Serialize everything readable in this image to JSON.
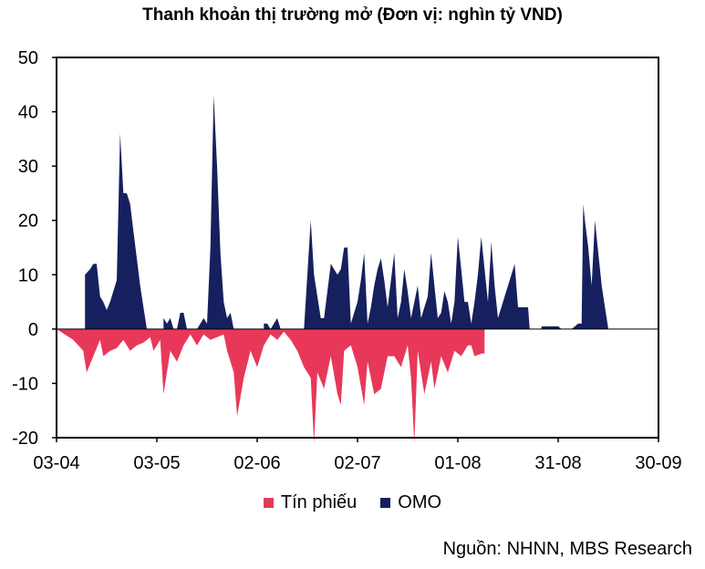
{
  "chart_data": {
    "type": "area",
    "title": "Thanh khoản thị trường mở (Đơn vị: nghìn tỷ VND)",
    "xlabel": "",
    "ylabel": "",
    "ylim": [
      -20,
      50
    ],
    "yticks": [
      -20,
      -10,
      0,
      10,
      20,
      30,
      40,
      50
    ],
    "xticks": [
      "03-04",
      "03-05",
      "02-06",
      "02-07",
      "01-08",
      "31-08",
      "30-09"
    ],
    "xlim_days": [
      0,
      180
    ],
    "grid": false,
    "legend_position": "bottom",
    "series": [
      {
        "name": "Tín phiếu",
        "color": "#e8385a",
        "points": [
          [
            0,
            0
          ],
          [
            5,
            -2
          ],
          [
            8,
            -4
          ],
          [
            9,
            -8
          ],
          [
            11,
            -5
          ],
          [
            13,
            -2
          ],
          [
            14,
            -5
          ],
          [
            16,
            -4
          ],
          [
            18,
            -3.5
          ],
          [
            20,
            -2
          ],
          [
            22,
            -4
          ],
          [
            24,
            -3
          ],
          [
            26,
            -2.5
          ],
          [
            28,
            -1.5
          ],
          [
            29,
            -4
          ],
          [
            31,
            -2
          ],
          [
            32,
            -12
          ],
          [
            34,
            -4
          ],
          [
            36,
            -6
          ],
          [
            38,
            -3
          ],
          [
            40,
            -1
          ],
          [
            42,
            -3
          ],
          [
            44,
            -1
          ],
          [
            46,
            -2
          ],
          [
            48,
            -1.5
          ],
          [
            50,
            -1
          ],
          [
            51,
            -4
          ],
          [
            53,
            -8
          ],
          [
            54,
            -16
          ],
          [
            56,
            -9
          ],
          [
            58,
            -4
          ],
          [
            60,
            -7
          ],
          [
            62,
            -3
          ],
          [
            64,
            -1
          ],
          [
            66,
            -2
          ],
          [
            68,
            -0.5
          ],
          [
            70,
            -2
          ],
          [
            72,
            -4
          ],
          [
            74,
            -7
          ],
          [
            76,
            -9
          ],
          [
            77,
            -21
          ],
          [
            78,
            -8
          ],
          [
            80,
            -11
          ],
          [
            82,
            -5
          ],
          [
            84,
            -12
          ],
          [
            85,
            -14
          ],
          [
            86,
            -4
          ],
          [
            88,
            -3
          ],
          [
            90,
            -7
          ],
          [
            92,
            -14
          ],
          [
            93,
            -6
          ],
          [
            95,
            -12
          ],
          [
            97,
            -11
          ],
          [
            99,
            -5
          ],
          [
            101,
            -5
          ],
          [
            103,
            -7
          ],
          [
            105,
            -3
          ],
          [
            106,
            -9
          ],
          [
            107,
            -21
          ],
          [
            108,
            -4
          ],
          [
            110,
            -12
          ],
          [
            112,
            -6
          ],
          [
            113,
            -11
          ],
          [
            115,
            -5
          ],
          [
            117,
            -8
          ],
          [
            119,
            -4
          ],
          [
            121,
            -5
          ],
          [
            123,
            -3
          ],
          [
            124,
            -3
          ],
          [
            125,
            -5
          ],
          [
            127,
            -4.5
          ],
          [
            128,
            -4.5
          ],
          [
            128,
            0
          ]
        ]
      },
      {
        "name": "OMO",
        "color": "#16205e",
        "points": [
          [
            0,
            0
          ],
          [
            8.5,
            0
          ],
          [
            8.5,
            10
          ],
          [
            10,
            11
          ],
          [
            11,
            12
          ],
          [
            12,
            12
          ],
          [
            13,
            6
          ],
          [
            14,
            5
          ],
          [
            15,
            3.5
          ],
          [
            16,
            5
          ],
          [
            17,
            7
          ],
          [
            18,
            9
          ],
          [
            19,
            36
          ],
          [
            20,
            25
          ],
          [
            21,
            25
          ],
          [
            22,
            23
          ],
          [
            23,
            18
          ],
          [
            24,
            13
          ],
          [
            25,
            8
          ],
          [
            26,
            4
          ],
          [
            27,
            0
          ],
          [
            32,
            0
          ],
          [
            32,
            2
          ],
          [
            33,
            1
          ],
          [
            34,
            2
          ],
          [
            35,
            0
          ],
          [
            36,
            0
          ],
          [
            37,
            3
          ],
          [
            38,
            3
          ],
          [
            39,
            0
          ],
          [
            42,
            0
          ],
          [
            43,
            1
          ],
          [
            44,
            2
          ],
          [
            45,
            1
          ],
          [
            46,
            15
          ],
          [
            47,
            43
          ],
          [
            48,
            30
          ],
          [
            49,
            14
          ],
          [
            50,
            5
          ],
          [
            51,
            2
          ],
          [
            52,
            3
          ],
          [
            53,
            0
          ],
          [
            62,
            0
          ],
          [
            62,
            1
          ],
          [
            63,
            1
          ],
          [
            64,
            0
          ],
          [
            65,
            1
          ],
          [
            66,
            2
          ],
          [
            67,
            0
          ],
          [
            72,
            0
          ],
          [
            74,
            0
          ],
          [
            76,
            20
          ],
          [
            77,
            10
          ],
          [
            78,
            6
          ],
          [
            79,
            2
          ],
          [
            80,
            2
          ],
          [
            81,
            7
          ],
          [
            82,
            12
          ],
          [
            83,
            11
          ],
          [
            84,
            10
          ],
          [
            85,
            11
          ],
          [
            86,
            15
          ],
          [
            87,
            15
          ],
          [
            88,
            1
          ],
          [
            89,
            3
          ],
          [
            90,
            5
          ],
          [
            91,
            9
          ],
          [
            92,
            14
          ],
          [
            93,
            1
          ],
          [
            94,
            4
          ],
          [
            95,
            8
          ],
          [
            96,
            11
          ],
          [
            97,
            13
          ],
          [
            98,
            9
          ],
          [
            99,
            4
          ],
          [
            100,
            9
          ],
          [
            101,
            14
          ],
          [
            102,
            2
          ],
          [
            103,
            5
          ],
          [
            104,
            11
          ],
          [
            105,
            7
          ],
          [
            106,
            2
          ],
          [
            107,
            5
          ],
          [
            108,
            8
          ],
          [
            109,
            2
          ],
          [
            110,
            4
          ],
          [
            111,
            6
          ],
          [
            112,
            14
          ],
          [
            113,
            8
          ],
          [
            114,
            2
          ],
          [
            115,
            3
          ],
          [
            116,
            7
          ],
          [
            117,
            5
          ],
          [
            118,
            1
          ],
          [
            119,
            5
          ],
          [
            120,
            17
          ],
          [
            121,
            11
          ],
          [
            122,
            5
          ],
          [
            123,
            5
          ],
          [
            124,
            1
          ],
          [
            125,
            5
          ],
          [
            126,
            10
          ],
          [
            127,
            17
          ],
          [
            128,
            11
          ],
          [
            129,
            5
          ],
          [
            130,
            16
          ],
          [
            131,
            8
          ],
          [
            132,
            2
          ],
          [
            133,
            4
          ],
          [
            134,
            6
          ],
          [
            135,
            8
          ],
          [
            136,
            10
          ],
          [
            137,
            12
          ],
          [
            138,
            4
          ],
          [
            139,
            4
          ],
          [
            140,
            4
          ],
          [
            141,
            4
          ],
          [
            141.5,
            0
          ],
          [
            145,
            0
          ],
          [
            145,
            0.5
          ],
          [
            148,
            0.5
          ],
          [
            150,
            0.5
          ],
          [
            151,
            0
          ],
          [
            154,
            0
          ],
          [
            156,
            1
          ],
          [
            157,
            1
          ],
          [
            157.5,
            23
          ],
          [
            158,
            20
          ],
          [
            159,
            15
          ],
          [
            160,
            8
          ],
          [
            161,
            20
          ],
          [
            162,
            14
          ],
          [
            163,
            8
          ],
          [
            164,
            4
          ],
          [
            165,
            0
          ]
        ]
      }
    ]
  },
  "legend": {
    "items": [
      {
        "label": "Tín phiếu",
        "color": "#e8385a"
      },
      {
        "label": "OMO",
        "color": "#16205e"
      }
    ]
  },
  "source": "Nguồn: NHNN, MBS Research"
}
